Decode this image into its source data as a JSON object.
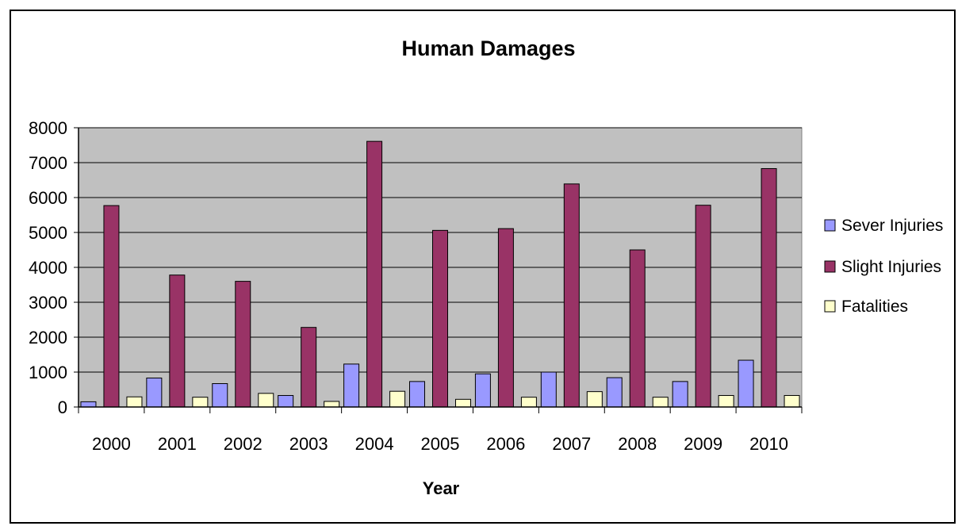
{
  "chart_data": {
    "type": "bar",
    "title": "Human Damages",
    "xlabel": "Year",
    "ylabel": "",
    "ylim": [
      0,
      8000
    ],
    "yticks": [
      0,
      1000,
      2000,
      3000,
      4000,
      5000,
      6000,
      7000,
      8000
    ],
    "categories": [
      "2000",
      "2001",
      "2002",
      "2003",
      "2004",
      "2005",
      "2006",
      "2007",
      "2008",
      "2009",
      "2010"
    ],
    "series": [
      {
        "name": "Sever Injuries",
        "color": "#9999ff",
        "values": [
          150,
          830,
          670,
          330,
          1230,
          730,
          950,
          1000,
          840,
          730,
          1340
        ]
      },
      {
        "name": "Slight Injuries",
        "color": "#993366",
        "values": [
          5770,
          3780,
          3600,
          2280,
          7610,
          5060,
          5110,
          6390,
          4500,
          5780,
          6830
        ]
      },
      {
        "name": "Fatalities",
        "color": "#ffffcc",
        "values": [
          290,
          280,
          390,
          160,
          450,
          220,
          280,
          440,
          280,
          330,
          330
        ]
      }
    ],
    "plot_background": "#c0c0c0",
    "grid": true,
    "legend_position": "right"
  }
}
